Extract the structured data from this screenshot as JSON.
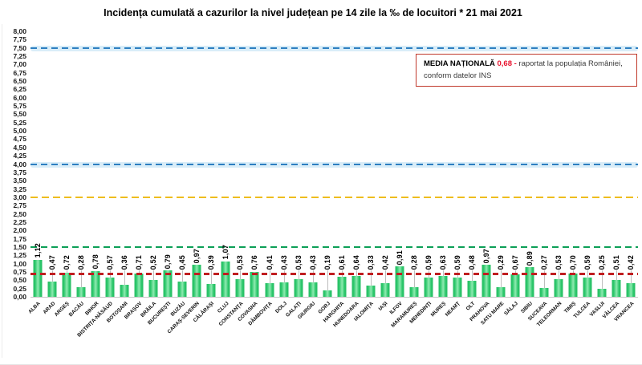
{
  "title": "Incidența cumulată a cazurilor la nivel județean pe 14 zile la ‰ de locuitori *  21 mai 2021",
  "note_box": {
    "label": "MEDIA NAȚIONALĂ",
    "value": "0,68 -",
    "line1": "raportat la populația României,",
    "line2": "conform datelor INS"
  },
  "chart_data": {
    "type": "bar",
    "title": "Incidența cumulată a cazurilor la nivel județean pe 14 zile la ‰ de locuitori * 21 mai 2021",
    "xlabel": "",
    "ylabel": "",
    "ylim": [
      0,
      8
    ],
    "ytick_step": 0.25,
    "grid": false,
    "legend_position": "none",
    "bar_color": "#2cc76b",
    "national_average": 0.68,
    "categories": [
      "ALBA",
      "ARAD",
      "ARGEȘ",
      "BACĂU",
      "BIHOR",
      "BISTRIȚA-NĂSĂUD",
      "BOTOȘANI",
      "BRAȘOV",
      "BRĂILA",
      "BUCUREȘTI",
      "BUZĂU",
      "CARAȘ-SEVERIN",
      "CĂLĂRAȘI",
      "CLUJ",
      "CONSTANȚA",
      "COVASNA",
      "DÂMBOVIȚA",
      "DOLJ",
      "GALAȚI",
      "GIURGIU",
      "GORJ",
      "HARGHITA",
      "HUNEDOARA",
      "IALOMIȚA",
      "IAȘI",
      "ILFOV",
      "MARAMUREȘ",
      "MEHEDINȚI",
      "MUREȘ",
      "NEAMȚ",
      "OLT",
      "PRAHOVA",
      "SATU MARE",
      "SĂLAJ",
      "SIBIU",
      "SUCEAVA",
      "TELEORMAN",
      "TIMIȘ",
      "TULCEA",
      "VASLUI",
      "VÂLCEA",
      "VRANCEA"
    ],
    "values": [
      1.12,
      0.47,
      0.72,
      0.28,
      0.78,
      0.57,
      0.36,
      0.71,
      0.52,
      0.79,
      0.45,
      0.97,
      0.39,
      1.07,
      0.53,
      0.76,
      0.41,
      0.43,
      0.53,
      0.43,
      0.19,
      0.61,
      0.64,
      0.33,
      0.42,
      0.91,
      0.28,
      0.59,
      0.63,
      0.59,
      0.48,
      0.97,
      0.29,
      0.67,
      0.89,
      0.27,
      0.53,
      0.7,
      0.59,
      0.25,
      0.51,
      0.42
    ],
    "value_labels": [
      "1,12",
      "0,47",
      "0,72",
      "0,28",
      "0,78",
      "0,57",
      "0,36",
      "0,71",
      "0,52",
      "0,79",
      "0,45",
      "0,97",
      "0,39",
      "1,07",
      "0,53",
      "0,76",
      "0,41",
      "0,43",
      "0,53",
      "0,43",
      "0,19",
      "0,61",
      "0,64",
      "0,33",
      "0,42",
      "0,91",
      "0,28",
      "0,59",
      "0,63",
      "0,59",
      "0,48",
      "0,97",
      "0,29",
      "0,67",
      "0,89",
      "0,27",
      "0,53",
      "0,70",
      "0,59",
      "0,25",
      "0,51",
      "0,42"
    ],
    "reference_lines": [
      {
        "value": 7.5,
        "color": "#2d7fc1",
        "halo": "#d9edf8",
        "thickness": 2,
        "dash": 8,
        "gap": 5
      },
      {
        "value": 4.0,
        "color": "#2d7fc1",
        "halo": "#d9edf8",
        "thickness": 2,
        "dash": 8,
        "gap": 5
      },
      {
        "value": 3.0,
        "color": "#eebd1e",
        "halo": "",
        "thickness": 2.5,
        "dash": 9,
        "gap": 5
      },
      {
        "value": 1.5,
        "color": "#0ca057",
        "halo": "",
        "thickness": 2.5,
        "dash": 8,
        "gap": 5
      },
      {
        "value": 0.68,
        "color": "#c01e20",
        "halo": "",
        "thickness": 3,
        "dash": 7,
        "gap": 5
      }
    ]
  }
}
